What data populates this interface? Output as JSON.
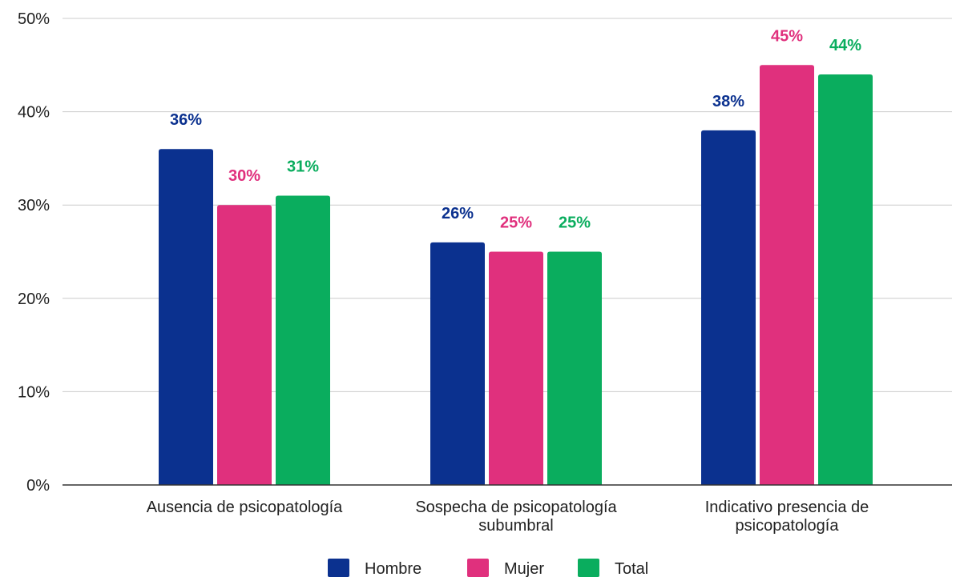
{
  "chart_data": {
    "type": "bar",
    "categories": [
      [
        "Ausencia de psicopatología"
      ],
      [
        "Sospecha de psicopatología",
        "subumbral"
      ],
      [
        "Indicativo presencia de",
        "psicopatología"
      ]
    ],
    "series": [
      {
        "name": "Hombre",
        "color": "#0b318f",
        "values": [
          36,
          26,
          38
        ],
        "labels": [
          "36%",
          "26%",
          "38%"
        ]
      },
      {
        "name": "Mujer",
        "color": "#e0307d",
        "values": [
          30,
          25,
          45
        ],
        "labels": [
          "30%",
          "25%",
          "45%"
        ]
      },
      {
        "name": "Total",
        "color": "#0aad5e",
        "values": [
          31,
          25,
          44
        ],
        "labels": [
          "31%",
          "25%",
          "44%"
        ]
      }
    ],
    "y_ticks": [
      {
        "value": 0,
        "label": "0%"
      },
      {
        "value": 10,
        "label": "10%"
      },
      {
        "value": 20,
        "label": "20%"
      },
      {
        "value": 30,
        "label": "30%"
      },
      {
        "value": 40,
        "label": "40%"
      },
      {
        "value": 50,
        "label": "50%"
      }
    ],
    "ylim": [
      0,
      50
    ],
    "title": "",
    "xlabel": "",
    "ylabel": "",
    "grid": true,
    "legend_position": "bottom-center"
  }
}
